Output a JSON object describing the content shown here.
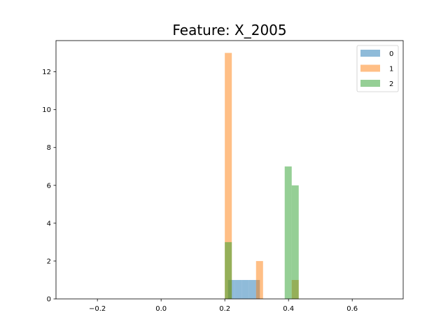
{
  "chart_data": {
    "type": "bar",
    "title": "Feature: X_2005",
    "xlabel": "",
    "ylabel": "",
    "xlim": [
      -0.33,
      0.76
    ],
    "ylim": [
      0,
      13.65
    ],
    "xticks": [
      -0.2,
      0.0,
      0.2,
      0.4,
      0.6
    ],
    "xtick_labels": [
      "−0.2",
      "0.0",
      "0.2",
      "0.4",
      "0.6"
    ],
    "yticks": [
      0,
      2,
      4,
      6,
      8,
      10,
      12
    ],
    "ytick_labels": [
      "0",
      "2",
      "4",
      "6",
      "8",
      "10",
      "12"
    ],
    "grid": false,
    "legend_position": "top-right",
    "series": [
      {
        "name": "0",
        "color": "#1f77b4",
        "bins": [
          {
            "x0": 0.21,
            "x1": 0.232,
            "count": 1
          },
          {
            "x0": 0.232,
            "x1": 0.254,
            "count": 1
          },
          {
            "x0": 0.254,
            "x1": 0.276,
            "count": 1
          },
          {
            "x0": 0.276,
            "x1": 0.298,
            "count": 1
          },
          {
            "x0": 0.298,
            "x1": 0.31,
            "count": 1
          }
        ]
      },
      {
        "name": "1",
        "color": "#ff7f0e",
        "bins": [
          {
            "x0": 0.2,
            "x1": 0.222,
            "count": 13
          },
          {
            "x0": 0.298,
            "x1": 0.32,
            "count": 2
          },
          {
            "x0": 0.41,
            "x1": 0.432,
            "count": 1
          }
        ]
      },
      {
        "name": "2",
        "color": "#2ca02c",
        "bins": [
          {
            "x0": 0.2,
            "x1": 0.222,
            "count": 3
          },
          {
            "x0": 0.388,
            "x1": 0.41,
            "count": 7
          },
          {
            "x0": 0.41,
            "x1": 0.432,
            "count": 6
          }
        ]
      }
    ]
  }
}
